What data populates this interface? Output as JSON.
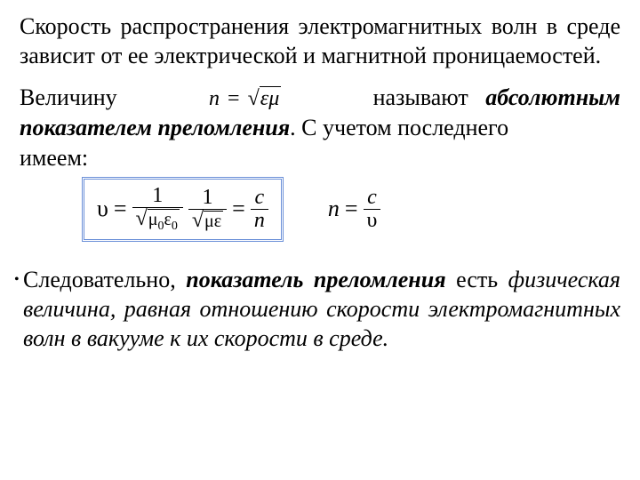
{
  "colors": {
    "text": "#000000",
    "background": "#ffffff",
    "formula_box_border": "#6a8fd8"
  },
  "typography": {
    "body_font": "Times New Roman",
    "body_size_pt": 20,
    "line_height": 1.28
  },
  "para1": "Скорость распространения электромагнитных волн в среде зависит от ее электрической и магнитной проницаемостей.",
  "para2": {
    "word_velichinu": "Величину",
    "inline_formula": {
      "lhs": "n",
      "eq": "=",
      "radicand": "εμ"
    },
    "word_nazyvayut": "называют",
    "term_bold_ital": "абсолютным показателем преломления",
    "tail": ". С учетом последнего имеем:"
  },
  "equations": {
    "boxed": {
      "lhs": "υ",
      "eq": "=",
      "frac1": {
        "num": "1",
        "den_radicand": "μ",
        "den_sub1": "0",
        "den_radicand2": "ε",
        "den_sub2": "0"
      },
      "frac2": {
        "num": "1",
        "den_radicand": "με"
      },
      "eq2": "=",
      "frac3": {
        "num": "c",
        "den": "n"
      }
    },
    "side": {
      "lhs": "n",
      "eq": "=",
      "frac": {
        "num": "c",
        "den": "υ"
      }
    }
  },
  "para3": {
    "lead": "Следовательно, ",
    "term_bold_ital": "показатель преломления",
    "mid": " есть ",
    "def_ital": "физическая величина, равная отношению скорости электромагнитных волн в вакууме к их скорости в среде."
  }
}
